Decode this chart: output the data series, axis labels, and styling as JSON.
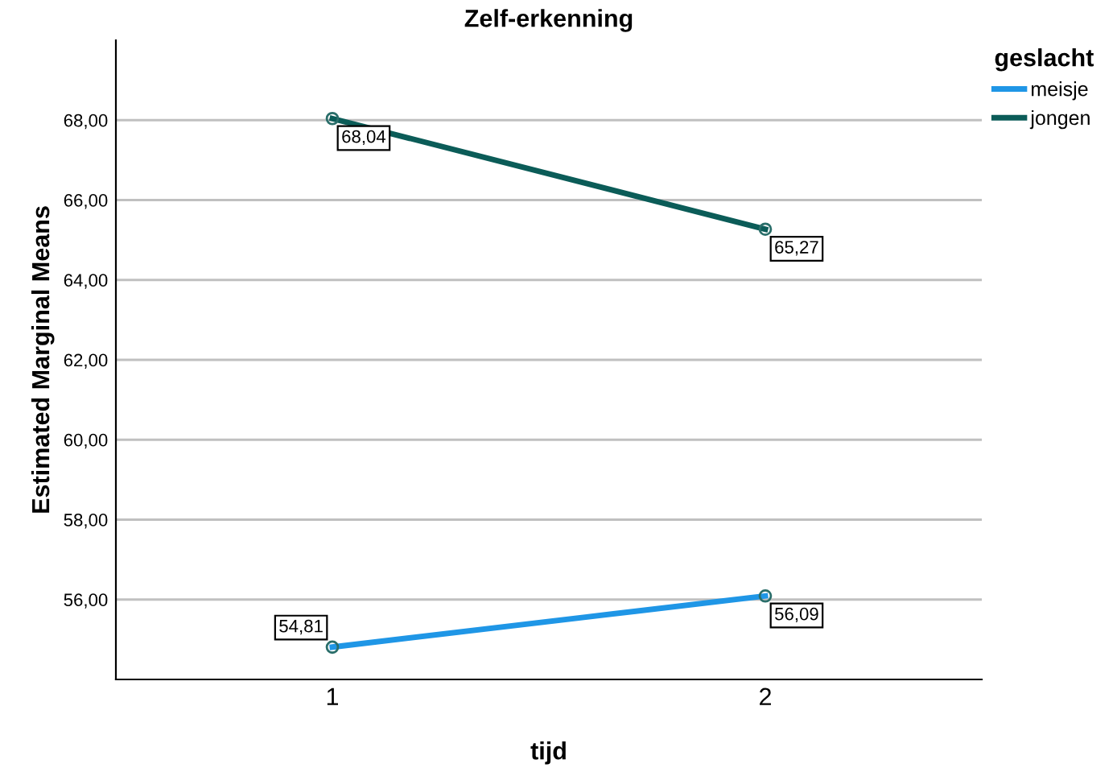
{
  "chart_data": {
    "type": "line",
    "title": "Zelf-erkenning",
    "xlabel": "tijd",
    "ylabel": "Estimated Marginal Means",
    "legend_title": "geslacht",
    "categories": [
      "1",
      "2"
    ],
    "series": [
      {
        "name": "meisje",
        "color": "#1f96e6",
        "values": [
          54.81,
          56.09
        ],
        "value_labels": [
          "54,81",
          "56,09"
        ]
      },
      {
        "name": "jongen",
        "color": "#0b5c58",
        "values": [
          68.04,
          65.27
        ],
        "value_labels": [
          "68,04",
          "65,27"
        ]
      }
    ],
    "ylim": [
      54,
      70
    ],
    "yticks": [
      {
        "value": 56,
        "label": "56,00"
      },
      {
        "value": 58,
        "label": "58,00"
      },
      {
        "value": 60,
        "label": "60,00"
      },
      {
        "value": 62,
        "label": "62,00"
      },
      {
        "value": 64,
        "label": "64,00"
      },
      {
        "value": 66,
        "label": "66,00"
      },
      {
        "value": 68,
        "label": "68,00"
      }
    ],
    "grid": "y",
    "legend": "top right",
    "marker": "circle",
    "line_style": "solid"
  }
}
